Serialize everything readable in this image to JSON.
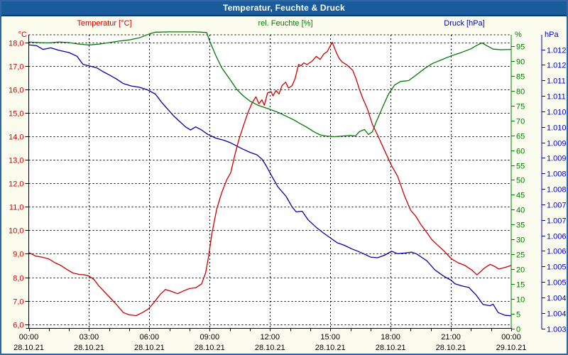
{
  "window": {
    "title": "Temperatur, Feuchte & Druck"
  },
  "colors": {
    "titlebar": "#1A5B9B",
    "frame": "#2E67A3",
    "background": "#FCFCEE",
    "plot_background": "#FFFFFF",
    "grid": "#000000",
    "temperature": "#CC0000",
    "temperature_text": "#D40000",
    "humidity": "#007A00",
    "pressure": "#0000AA",
    "pressure_text": "#0000CC",
    "time_text": "#000000"
  },
  "axes": {
    "temperature": {
      "unit": "°C",
      "side": "left",
      "tick_labels": [
        "18,0",
        "17,0",
        "16,0",
        "15,0",
        "14,0",
        "13,0",
        "12,0",
        "11,0",
        "10,0",
        "9,0",
        "8,0",
        "7,0",
        "6,0"
      ],
      "tick_values": [
        18,
        17,
        16,
        15,
        14,
        13,
        12,
        11,
        10,
        9,
        8,
        7,
        6
      ]
    },
    "humidity": {
      "unit": "%",
      "side": "right-inner",
      "tick_labels": [
        "95",
        "90",
        "85",
        "80",
        "75",
        "70",
        "65",
        "60",
        "55",
        "50",
        "45",
        "40",
        "35",
        "30",
        "25",
        "20",
        "15",
        "10",
        "5",
        "0"
      ],
      "tick_values": [
        95,
        90,
        85,
        80,
        75,
        70,
        65,
        60,
        55,
        50,
        45,
        40,
        35,
        30,
        25,
        20,
        15,
        10,
        5,
        0
      ]
    },
    "pressure": {
      "unit": "hPa",
      "side": "right-outer",
      "tick_labels": [
        "1.012",
        "1.012",
        "1.011",
        "1.011",
        "1.010",
        "1.010",
        "1.009",
        "1.009",
        "1.008",
        "1.008",
        "1.007",
        "1.007",
        "1.006",
        "1.006",
        "1.005",
        "1.005",
        "1.004",
        "1.004",
        "1.003"
      ],
      "tick_values": [
        1.012,
        1.0115,
        1.011,
        1.0105,
        1.01,
        1.0095,
        1.009,
        1.0085,
        1.008,
        1.0075,
        1.007,
        1.0065,
        1.006,
        1.0055,
        1.005,
        1.0045,
        1.004,
        1.0035,
        1.003
      ]
    },
    "time": {
      "ticks": [
        {
          "t": 0,
          "time": "00:00",
          "date": "28.10.21"
        },
        {
          "t": 3,
          "time": "03:00",
          "date": "28.10.21"
        },
        {
          "t": 6,
          "time": "06:00",
          "date": "28.10.21"
        },
        {
          "t": 9,
          "time": "09:00",
          "date": "28.10.21"
        },
        {
          "t": 12,
          "time": "12:00",
          "date": "28.10.21"
        },
        {
          "t": 15,
          "time": "15:00",
          "date": "28.10.21"
        },
        {
          "t": 18,
          "time": "18:00",
          "date": "28.10.21"
        },
        {
          "t": 21,
          "time": "21:00",
          "date": "28.10.21"
        },
        {
          "t": 24,
          "time": "00:00",
          "date": "29.10.21"
        }
      ]
    }
  },
  "chart_data": {
    "type": "line",
    "title": "Temperatur, Feuchte & Druck",
    "x_range_hours": [
      0,
      24
    ],
    "x_gridline_interval_hours": 3,
    "grid": true,
    "series": [
      {
        "name": "Temperatur [°C]",
        "axis": "temperature",
        "color": "#CC0000",
        "ylim": [
          5.85,
          18.35
        ],
        "points": [
          [
            0,
            9.05
          ],
          [
            0.35,
            8.9
          ],
          [
            0.7,
            8.85
          ],
          [
            1.0,
            8.78
          ],
          [
            1.3,
            8.62
          ],
          [
            1.6,
            8.5
          ],
          [
            1.9,
            8.33
          ],
          [
            2.2,
            8.18
          ],
          [
            2.5,
            8.12
          ],
          [
            2.8,
            8.1
          ],
          [
            3.0,
            8.05
          ],
          [
            3.25,
            7.9
          ],
          [
            3.5,
            7.62
          ],
          [
            3.8,
            7.35
          ],
          [
            4.1,
            7.08
          ],
          [
            4.4,
            6.8
          ],
          [
            4.7,
            6.5
          ],
          [
            5.0,
            6.4
          ],
          [
            5.35,
            6.37
          ],
          [
            5.65,
            6.5
          ],
          [
            5.95,
            6.65
          ],
          [
            6.25,
            6.95
          ],
          [
            6.55,
            7.28
          ],
          [
            6.8,
            7.48
          ],
          [
            7.1,
            7.4
          ],
          [
            7.4,
            7.3
          ],
          [
            7.7,
            7.42
          ],
          [
            8.0,
            7.52
          ],
          [
            8.3,
            7.55
          ],
          [
            8.6,
            7.72
          ],
          [
            8.8,
            8.2
          ],
          [
            8.95,
            8.9
          ],
          [
            9.1,
            9.8
          ],
          [
            9.35,
            10.9
          ],
          [
            9.6,
            11.6
          ],
          [
            9.85,
            12.15
          ],
          [
            10.05,
            12.45
          ],
          [
            10.25,
            13.2
          ],
          [
            10.45,
            13.85
          ],
          [
            10.7,
            14.5
          ],
          [
            10.9,
            15.0
          ],
          [
            11.1,
            15.4
          ],
          [
            11.3,
            15.68
          ],
          [
            11.45,
            15.38
          ],
          [
            11.6,
            15.55
          ],
          [
            11.72,
            15.32
          ],
          [
            11.88,
            15.85
          ],
          [
            12.05,
            15.9
          ],
          [
            12.15,
            15.72
          ],
          [
            12.3,
            15.95
          ],
          [
            12.45,
            15.8
          ],
          [
            12.6,
            16.15
          ],
          [
            12.78,
            16.3
          ],
          [
            12.92,
            16.05
          ],
          [
            13.1,
            16.15
          ],
          [
            13.25,
            16.45
          ],
          [
            13.42,
            17.05
          ],
          [
            13.55,
            17.0
          ],
          [
            13.68,
            17.12
          ],
          [
            13.85,
            17.05
          ],
          [
            14.1,
            17.2
          ],
          [
            14.3,
            17.4
          ],
          [
            14.5,
            17.27
          ],
          [
            14.68,
            17.5
          ],
          [
            14.85,
            17.6
          ],
          [
            15.0,
            17.85
          ],
          [
            15.1,
            18.0
          ],
          [
            15.28,
            17.6
          ],
          [
            15.45,
            17.3
          ],
          [
            15.6,
            17.15
          ],
          [
            15.8,
            17.05
          ],
          [
            16.0,
            16.9
          ],
          [
            16.12,
            16.8
          ],
          [
            16.28,
            16.45
          ],
          [
            16.45,
            16.0
          ],
          [
            16.62,
            15.6
          ],
          [
            16.85,
            15.15
          ],
          [
            17.1,
            14.5
          ],
          [
            17.38,
            14.0
          ],
          [
            17.7,
            13.4
          ],
          [
            18.05,
            12.75
          ],
          [
            18.35,
            12.3
          ],
          [
            18.7,
            11.45
          ],
          [
            19.0,
            10.85
          ],
          [
            19.25,
            10.6
          ],
          [
            19.5,
            10.25
          ],
          [
            19.72,
            10.0
          ],
          [
            20.05,
            9.6
          ],
          [
            20.3,
            9.4
          ],
          [
            20.68,
            9.1
          ],
          [
            21.0,
            8.8
          ],
          [
            21.35,
            8.62
          ],
          [
            21.7,
            8.5
          ],
          [
            22.05,
            8.3
          ],
          [
            22.3,
            8.1
          ],
          [
            22.65,
            8.38
          ],
          [
            22.95,
            8.55
          ],
          [
            23.2,
            8.45
          ],
          [
            23.38,
            8.35
          ],
          [
            23.7,
            8.42
          ],
          [
            24,
            8.5
          ]
        ]
      },
      {
        "name": "rel. Feuchte [%]",
        "axis": "humidity",
        "color": "#007A00",
        "ylim": [
          0,
          98.5
        ],
        "points": [
          [
            0,
            96.5
          ],
          [
            0.5,
            96.3
          ],
          [
            1.0,
            96.2
          ],
          [
            1.5,
            96.5
          ],
          [
            2.0,
            96.3
          ],
          [
            2.5,
            95.8
          ],
          [
            3.0,
            95.5
          ],
          [
            3.5,
            95.8
          ],
          [
            4.0,
            96.3
          ],
          [
            4.5,
            96.8
          ],
          [
            5.0,
            97.2
          ],
          [
            5.5,
            97.9
          ],
          [
            6.0,
            99.2
          ],
          [
            6.3,
            99.8
          ],
          [
            7.0,
            99.9
          ],
          [
            7.6,
            99.9
          ],
          [
            8.3,
            99.9
          ],
          [
            8.85,
            99.7
          ],
          [
            9.0,
            96.8
          ],
          [
            9.3,
            92.0
          ],
          [
            9.6,
            87.8
          ],
          [
            10.0,
            84.0
          ],
          [
            10.35,
            80.5
          ],
          [
            10.7,
            78.2
          ],
          [
            11.0,
            76.6
          ],
          [
            11.4,
            75.2
          ],
          [
            12.0,
            73.8
          ],
          [
            12.4,
            72.8
          ],
          [
            12.8,
            71.5
          ],
          [
            13.2,
            70.2
          ],
          [
            13.5,
            69.0
          ],
          [
            13.8,
            67.9
          ],
          [
            14.2,
            66.2
          ],
          [
            14.5,
            65.2
          ],
          [
            14.8,
            64.8
          ],
          [
            15.2,
            64.6
          ],
          [
            15.6,
            64.8
          ],
          [
            16.0,
            65.0
          ],
          [
            16.25,
            64.8
          ],
          [
            16.45,
            66.3
          ],
          [
            16.7,
            67.0
          ],
          [
            16.9,
            65.3
          ],
          [
            17.1,
            66.3
          ],
          [
            17.3,
            69.8
          ],
          [
            17.6,
            74.5
          ],
          [
            17.9,
            79.0
          ],
          [
            18.2,
            82.0
          ],
          [
            18.5,
            83.2
          ],
          [
            18.9,
            83.5
          ],
          [
            19.3,
            85.5
          ],
          [
            19.7,
            87.6
          ],
          [
            20.1,
            89.3
          ],
          [
            20.5,
            90.4
          ],
          [
            21.0,
            91.8
          ],
          [
            21.5,
            92.9
          ],
          [
            22.0,
            94.2
          ],
          [
            22.3,
            95.4
          ],
          [
            22.55,
            96.2
          ],
          [
            22.8,
            95.2
          ],
          [
            23.1,
            94.1
          ],
          [
            23.5,
            93.9
          ],
          [
            24,
            94.0
          ]
        ]
      },
      {
        "name": "Druck [hPa]",
        "axis": "pressure",
        "color": "#0000AA",
        "ylim": [
          1.003,
          1.0125
        ],
        "points": [
          [
            0,
            1.01215
          ],
          [
            0.4,
            1.01212
          ],
          [
            0.7,
            1.012
          ],
          [
            1.1,
            1.01205
          ],
          [
            1.5,
            1.01197
          ],
          [
            2.0,
            1.0119
          ],
          [
            2.4,
            1.01178
          ],
          [
            2.7,
            1.01152
          ],
          [
            3.0,
            1.01147
          ],
          [
            3.4,
            1.0114
          ],
          [
            3.7,
            1.01128
          ],
          [
            4.0,
            1.01118
          ],
          [
            4.35,
            1.01105
          ],
          [
            4.7,
            1.0109
          ],
          [
            5.1,
            1.01082
          ],
          [
            5.5,
            1.01078
          ],
          [
            5.9,
            1.0107
          ],
          [
            6.3,
            1.01056
          ],
          [
            6.6,
            1.0103
          ],
          [
            6.9,
            1.01008
          ],
          [
            7.2,
            1.00986
          ],
          [
            7.5,
            1.00968
          ],
          [
            7.8,
            1.0095
          ],
          [
            8.05,
            1.0094
          ],
          [
            8.3,
            1.0095
          ],
          [
            8.6,
            1.0094
          ],
          [
            8.9,
            1.00926
          ],
          [
            9.3,
            1.00914
          ],
          [
            9.7,
            1.00907
          ],
          [
            10.0,
            1.009
          ],
          [
            10.6,
            1.0088
          ],
          [
            11.0,
            1.00868
          ],
          [
            11.35,
            1.0086
          ],
          [
            11.6,
            1.00846
          ],
          [
            11.8,
            1.00826
          ],
          [
            12.1,
            1.0079
          ],
          [
            12.4,
            1.00756
          ],
          [
            12.8,
            1.00726
          ],
          [
            13.1,
            1.00692
          ],
          [
            13.3,
            1.00676
          ],
          [
            13.6,
            1.00678
          ],
          [
            13.9,
            1.0065
          ],
          [
            14.3,
            1.00626
          ],
          [
            14.65,
            1.00608
          ],
          [
            15.0,
            1.00592
          ],
          [
            15.35,
            1.00576
          ],
          [
            15.7,
            1.00568
          ],
          [
            16.05,
            1.00557
          ],
          [
            16.4,
            1.00548
          ],
          [
            16.75,
            1.00538
          ],
          [
            17.0,
            1.0053
          ],
          [
            17.35,
            1.00528
          ],
          [
            17.7,
            1.00536
          ],
          [
            18.05,
            1.00549
          ],
          [
            18.35,
            1.00541
          ],
          [
            18.7,
            1.00543
          ],
          [
            19.05,
            1.00546
          ],
          [
            19.3,
            1.0054
          ],
          [
            19.55,
            1.00529
          ],
          [
            19.8,
            1.00518
          ],
          [
            20.2,
            1.00489
          ],
          [
            20.45,
            1.00477
          ],
          [
            20.7,
            1.00466
          ],
          [
            21.0,
            1.00456
          ],
          [
            21.2,
            1.00444
          ],
          [
            21.55,
            1.00437
          ],
          [
            21.9,
            1.00432
          ],
          [
            22.25,
            1.00408
          ],
          [
            22.6,
            1.00377
          ],
          [
            22.95,
            1.00373
          ],
          [
            23.1,
            1.00378
          ],
          [
            23.35,
            1.00351
          ],
          [
            23.7,
            1.00342
          ],
          [
            24,
            1.00341
          ]
        ]
      }
    ]
  }
}
